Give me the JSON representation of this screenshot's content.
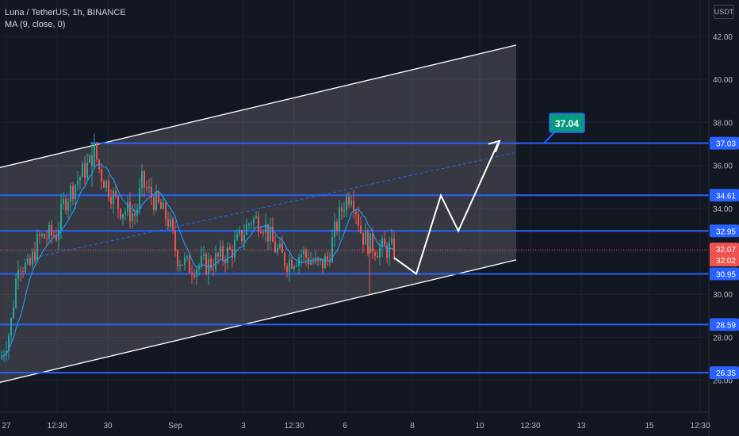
{
  "legend": {
    "symbol": "Luna / TetherUS, 1h, BINANCE",
    "indicator": "MA (9, close, 0)"
  },
  "currency_button": "USDT",
  "colors": {
    "background": "#131722",
    "up": "#26a69a",
    "down": "#ef5350",
    "level_line": "#2962ff",
    "ma_line": "#2196f3",
    "channel": "#ffffff",
    "target_label": "#089981"
  },
  "chart_data": {
    "type": "candlestick",
    "x_ticks": [
      "27",
      "12:30",
      "30",
      "Sep",
      "3",
      "12:30",
      "6",
      "8",
      "10",
      "12:30",
      "13",
      "15",
      "12:30"
    ],
    "y_ticks": [
      "42.00",
      "40.00",
      "38.00",
      "36.00",
      "34.00",
      "32.00",
      "30.00",
      "28.00",
      "26.00"
    ],
    "ylim": [
      25.8,
      43.2
    ],
    "horizontal_levels": [
      37.03,
      34.61,
      32.95,
      30.95,
      28.59,
      26.35
    ],
    "price_labels": [
      {
        "text": "37.03",
        "kind": "level"
      },
      {
        "text": "34.61",
        "kind": "level"
      },
      {
        "text": "32.95",
        "kind": "level"
      },
      {
        "text": "32.07",
        "kind": "current"
      },
      {
        "text": "32:02",
        "kind": "countdown"
      },
      {
        "text": "30.95",
        "kind": "level"
      },
      {
        "text": "28.59",
        "kind": "level"
      },
      {
        "text": "26.35",
        "kind": "level"
      }
    ],
    "target_callout": "37.04",
    "current_price": 32.07,
    "channel": {
      "upper_start": 35.9,
      "upper_end": 41.6,
      "lower_start": 25.9,
      "lower_end": 31.6,
      "mid_start": 31.6,
      "mid_end": 36.6
    },
    "projection_path": [
      31.7,
      30.95,
      34.6,
      32.95,
      37.03
    ]
  }
}
